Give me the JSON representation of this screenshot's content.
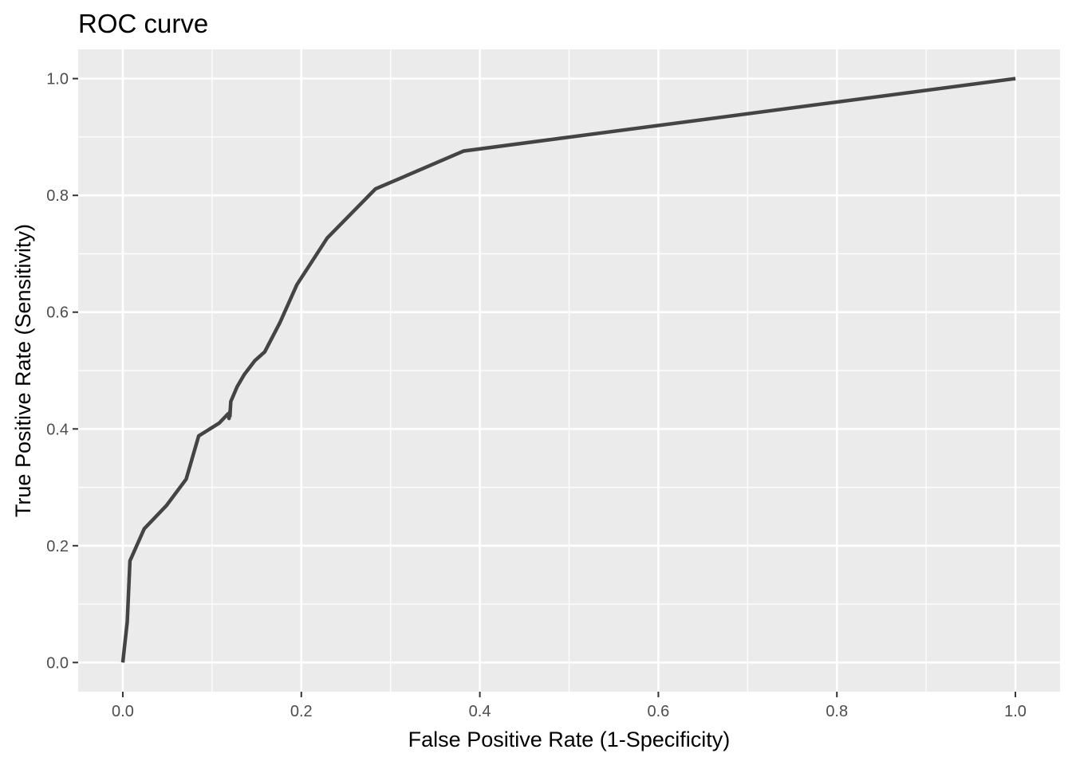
{
  "chart_data": {
    "type": "line",
    "title": "ROC curve",
    "xlabel": "False Positive Rate (1-Specificity)",
    "ylabel": "True Positive Rate (Sensitivity)",
    "xlim": [
      -0.05,
      1.05
    ],
    "ylim": [
      -0.05,
      1.05
    ],
    "x_ticks": [
      0.0,
      0.2,
      0.4,
      0.6,
      0.8,
      1.0
    ],
    "x_tick_labels": [
      "0.0",
      "0.2",
      "0.4",
      "0.6",
      "0.8",
      "1.0"
    ],
    "y_ticks": [
      0.0,
      0.2,
      0.4,
      0.6,
      0.8,
      1.0
    ],
    "y_tick_labels": [
      "0.0",
      "0.2",
      "0.4",
      "0.6",
      "0.8",
      "1.0"
    ],
    "grid": true,
    "panel_background": "#ebebeb",
    "line_color": "#444444",
    "series": [
      {
        "x": [
          0.0,
          0.005,
          0.008,
          0.024,
          0.049,
          0.071,
          0.085,
          0.108,
          0.118,
          0.119,
          0.12,
          0.12,
          0.121,
          0.128,
          0.136,
          0.148,
          0.159,
          0.176,
          0.195,
          0.229,
          0.283,
          0.382,
          1.0
        ],
        "y": [
          0.0,
          0.07,
          0.174,
          0.229,
          0.269,
          0.314,
          0.388,
          0.41,
          0.426,
          0.418,
          0.43,
          0.422,
          0.447,
          0.472,
          0.493,
          0.517,
          0.532,
          0.582,
          0.647,
          0.727,
          0.811,
          0.876,
          1.0
        ]
      }
    ]
  }
}
